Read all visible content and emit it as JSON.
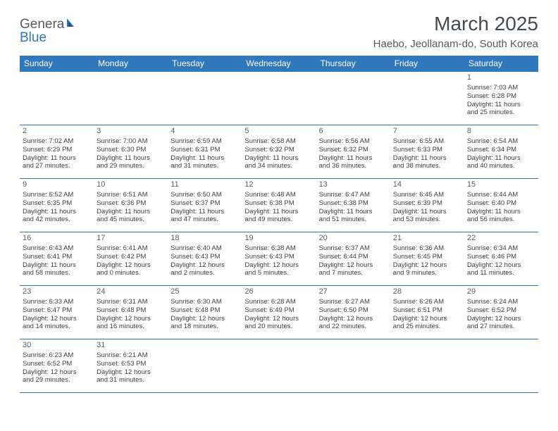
{
  "logo": {
    "general": "Genera",
    "blue": "Blue"
  },
  "title": "March 2025",
  "location": "Haebo, Jeollanam-do, South Korea",
  "colors": {
    "header_bg": "#2f78bd",
    "header_fg": "#ffffff",
    "border": "#2f78bd",
    "text": "#3b3f44",
    "title": "#444a52",
    "logo_gray": "#555a60",
    "logo_blue": "#2f77b5"
  },
  "day_headers": [
    "Sunday",
    "Monday",
    "Tuesday",
    "Wednesday",
    "Thursday",
    "Friday",
    "Saturday"
  ],
  "weeks": [
    [
      null,
      null,
      null,
      null,
      null,
      null,
      {
        "n": "1",
        "sr": "Sunrise: 7:03 AM",
        "ss": "Sunset: 6:28 PM",
        "dl1": "Daylight: 11 hours",
        "dl2": "and 25 minutes."
      }
    ],
    [
      {
        "n": "2",
        "sr": "Sunrise: 7:02 AM",
        "ss": "Sunset: 6:29 PM",
        "dl1": "Daylight: 11 hours",
        "dl2": "and 27 minutes."
      },
      {
        "n": "3",
        "sr": "Sunrise: 7:00 AM",
        "ss": "Sunset: 6:30 PM",
        "dl1": "Daylight: 11 hours",
        "dl2": "and 29 minutes."
      },
      {
        "n": "4",
        "sr": "Sunrise: 6:59 AM",
        "ss": "Sunset: 6:31 PM",
        "dl1": "Daylight: 11 hours",
        "dl2": "and 31 minutes."
      },
      {
        "n": "5",
        "sr": "Sunrise: 6:58 AM",
        "ss": "Sunset: 6:32 PM",
        "dl1": "Daylight: 11 hours",
        "dl2": "and 34 minutes."
      },
      {
        "n": "6",
        "sr": "Sunrise: 6:56 AM",
        "ss": "Sunset: 6:32 PM",
        "dl1": "Daylight: 11 hours",
        "dl2": "and 36 minutes."
      },
      {
        "n": "7",
        "sr": "Sunrise: 6:55 AM",
        "ss": "Sunset: 6:33 PM",
        "dl1": "Daylight: 11 hours",
        "dl2": "and 38 minutes."
      },
      {
        "n": "8",
        "sr": "Sunrise: 6:54 AM",
        "ss": "Sunset: 6:34 PM",
        "dl1": "Daylight: 11 hours",
        "dl2": "and 40 minutes."
      }
    ],
    [
      {
        "n": "9",
        "sr": "Sunrise: 6:52 AM",
        "ss": "Sunset: 6:35 PM",
        "dl1": "Daylight: 11 hours",
        "dl2": "and 42 minutes."
      },
      {
        "n": "10",
        "sr": "Sunrise: 6:51 AM",
        "ss": "Sunset: 6:36 PM",
        "dl1": "Daylight: 11 hours",
        "dl2": "and 45 minutes."
      },
      {
        "n": "11",
        "sr": "Sunrise: 6:50 AM",
        "ss": "Sunset: 6:37 PM",
        "dl1": "Daylight: 11 hours",
        "dl2": "and 47 minutes."
      },
      {
        "n": "12",
        "sr": "Sunrise: 6:48 AM",
        "ss": "Sunset: 6:38 PM",
        "dl1": "Daylight: 11 hours",
        "dl2": "and 49 minutes."
      },
      {
        "n": "13",
        "sr": "Sunrise: 6:47 AM",
        "ss": "Sunset: 6:38 PM",
        "dl1": "Daylight: 11 hours",
        "dl2": "and 51 minutes."
      },
      {
        "n": "14",
        "sr": "Sunrise: 6:45 AM",
        "ss": "Sunset: 6:39 PM",
        "dl1": "Daylight: 11 hours",
        "dl2": "and 53 minutes."
      },
      {
        "n": "15",
        "sr": "Sunrise: 6:44 AM",
        "ss": "Sunset: 6:40 PM",
        "dl1": "Daylight: 11 hours",
        "dl2": "and 56 minutes."
      }
    ],
    [
      {
        "n": "16",
        "sr": "Sunrise: 6:43 AM",
        "ss": "Sunset: 6:41 PM",
        "dl1": "Daylight: 11 hours",
        "dl2": "and 58 minutes."
      },
      {
        "n": "17",
        "sr": "Sunrise: 6:41 AM",
        "ss": "Sunset: 6:42 PM",
        "dl1": "Daylight: 12 hours",
        "dl2": "and 0 minutes."
      },
      {
        "n": "18",
        "sr": "Sunrise: 6:40 AM",
        "ss": "Sunset: 6:43 PM",
        "dl1": "Daylight: 12 hours",
        "dl2": "and 2 minutes."
      },
      {
        "n": "19",
        "sr": "Sunrise: 6:38 AM",
        "ss": "Sunset: 6:43 PM",
        "dl1": "Daylight: 12 hours",
        "dl2": "and 5 minutes."
      },
      {
        "n": "20",
        "sr": "Sunrise: 6:37 AM",
        "ss": "Sunset: 6:44 PM",
        "dl1": "Daylight: 12 hours",
        "dl2": "and 7 minutes."
      },
      {
        "n": "21",
        "sr": "Sunrise: 6:36 AM",
        "ss": "Sunset: 6:45 PM",
        "dl1": "Daylight: 12 hours",
        "dl2": "and 9 minutes."
      },
      {
        "n": "22",
        "sr": "Sunrise: 6:34 AM",
        "ss": "Sunset: 6:46 PM",
        "dl1": "Daylight: 12 hours",
        "dl2": "and 11 minutes."
      }
    ],
    [
      {
        "n": "23",
        "sr": "Sunrise: 6:33 AM",
        "ss": "Sunset: 6:47 PM",
        "dl1": "Daylight: 12 hours",
        "dl2": "and 14 minutes."
      },
      {
        "n": "24",
        "sr": "Sunrise: 6:31 AM",
        "ss": "Sunset: 6:48 PM",
        "dl1": "Daylight: 12 hours",
        "dl2": "and 16 minutes."
      },
      {
        "n": "25",
        "sr": "Sunrise: 6:30 AM",
        "ss": "Sunset: 6:48 PM",
        "dl1": "Daylight: 12 hours",
        "dl2": "and 18 minutes."
      },
      {
        "n": "26",
        "sr": "Sunrise: 6:28 AM",
        "ss": "Sunset: 6:49 PM",
        "dl1": "Daylight: 12 hours",
        "dl2": "and 20 minutes."
      },
      {
        "n": "27",
        "sr": "Sunrise: 6:27 AM",
        "ss": "Sunset: 6:50 PM",
        "dl1": "Daylight: 12 hours",
        "dl2": "and 22 minutes."
      },
      {
        "n": "28",
        "sr": "Sunrise: 6:26 AM",
        "ss": "Sunset: 6:51 PM",
        "dl1": "Daylight: 12 hours",
        "dl2": "and 25 minutes."
      },
      {
        "n": "29",
        "sr": "Sunrise: 6:24 AM",
        "ss": "Sunset: 6:52 PM",
        "dl1": "Daylight: 12 hours",
        "dl2": "and 27 minutes."
      }
    ],
    [
      {
        "n": "30",
        "sr": "Sunrise: 6:23 AM",
        "ss": "Sunset: 6:52 PM",
        "dl1": "Daylight: 12 hours",
        "dl2": "and 29 minutes."
      },
      {
        "n": "31",
        "sr": "Sunrise: 6:21 AM",
        "ss": "Sunset: 6:53 PM",
        "dl1": "Daylight: 12 hours",
        "dl2": "and 31 minutes."
      },
      null,
      null,
      null,
      null,
      null
    ]
  ]
}
